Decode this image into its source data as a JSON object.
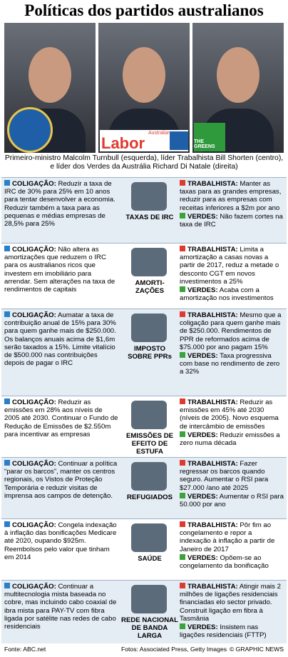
{
  "title": "Políticas dos partidos australianos",
  "logos": {
    "labor_small": "Australian",
    "labor": "Labor",
    "greens": "THE GREENS"
  },
  "caption": "Primeiro-ministro Malcolm Turnbull (esquerda), líder Trabalhista Bill Shorten (centro), e líder dos Verdes da Austrália Richard Di Natale (direita)",
  "rows": [
    {
      "coalition": {
        "label": "COLIGAÇÃO:",
        "text": "Reduzir a taxa de IRC de 30% para 25% em 10 anos para tentar desenvolver a economia. Reduzir também a taxa para as pequenas e médias empresas de 28,5% para 25%"
      },
      "topic": "TAXAS DE IRC",
      "labor": {
        "label": "TRABALHISTA:",
        "text": "Manter as taxas para as grandes empresas, reduzir para as empresas com receitas inferiores a $2m por ano"
      },
      "greens": {
        "label": "VERDES:",
        "text": "Não fazem cortes na taxa de IRC"
      }
    },
    {
      "coalition": {
        "label": "COLIGAÇÃO:",
        "text": "Não altera as amortizações que reduzem o IRC para os australianos ricos que investem em imobiliário para arrendar. Sem alterações na taxa de rendimentos de capitais"
      },
      "topic": "AMORTI-ZAÇÕES",
      "labor": {
        "label": "TRABALHISTA:",
        "text": "Limita a amortização a casas novas a partir de 2017, reduz a metade o desconto CGT em novos investimentos a 25%"
      },
      "greens": {
        "label": "VERDES:",
        "text": "Acaba com a amortização nos investimentos"
      }
    },
    {
      "coalition": {
        "label": "COLIGAÇÃO:",
        "text": "Aumatar a taxa de contribuição anual de 15% para 30% para quem ganhe mais de $250.000. Os balanços anuais acima de $1,6m serão taxados a 15%. Limite vitalício de $500.000 nas contribuições depois de pagar o IRC"
      },
      "topic": "IMPOSTO SOBRE PPRs",
      "labor": {
        "label": "TRABALHISTA:",
        "text": "Mesmo que a coligação para quem ganhe mais de $250.000. Rendimentos de PPR de reformados acima de $75.000 por ano pagam 15%"
      },
      "greens": {
        "label": "VERDES:",
        "text": "Taxa progressiva com base no rendimento de zero a 32%"
      }
    },
    {
      "coalition": {
        "label": "COLIGAÇÃO:",
        "text": "Reduzir as emissões em 28% aos níveis de 2005 até 2030. Continuar o Fundo de Redução de Emissões de $2.550m para incentivar as empresas"
      },
      "topic": "EMISSÕES DE EFEITO DE ESTUFA",
      "labor": {
        "label": "TRABALHISTA:",
        "text": "Reduzir as emissões em 45% até 2030 (níveis de 2005). Novo esquema de intercâmbio de emissões"
      },
      "greens": {
        "label": "VERDES:",
        "text": "Reduzir emissões a zero numa década"
      }
    },
    {
      "coalition": {
        "label": "COLIGAÇÃO:",
        "text": "Continuar a política “parar os barcos”, manter os centros regionais, os Vistos de Proteção Temporária e reduzir visitas de imprensa aos campos de detenção."
      },
      "topic": "REFUGIADOS",
      "labor": {
        "label": "TRABALHISTA:",
        "text": "Fazer regressar os barcos quando seguro. Aumentar o RSI para $27.000 /ano até 2025"
      },
      "greens": {
        "label": "VERDES:",
        "text": "Aumentar o RSI para 50.000 por ano"
      }
    },
    {
      "coalition": {
        "label": "COLIGAÇÃO:",
        "text": "Congela indexação à inflação das bonificações Medicare até 2020, oupando $925m. Reembolsos pelo valor que tinham em 2014"
      },
      "topic": "SAÚDE",
      "labor": {
        "label": "TRABALHISTA:",
        "text": "Pôr fim ao congelamento e repor a indexação à inflação a partir de Janeiro de 2017"
      },
      "greens": {
        "label": "VERDES:",
        "text": "Opõem-se ao congelamento da bonificação"
      }
    },
    {
      "coalition": {
        "label": "COLIGAÇÃO:",
        "text": "Continuar a multitecnologia mista baseada no cobre, mas incluindo cabo coaxial de ibra mista para PAY-TV com fibra ligada por satélite nas redes de cabo residenciais"
      },
      "topic": "REDE NACIONAL DE BANDA LARGA",
      "labor": {
        "label": "TRABALHISTA:",
        "text": "Atingir mais 2 milhões de ligações residenciais financiadas elo sector privado. Construit ligação em fibra à Tasmânia"
      },
      "greens": {
        "label": "VERDES:",
        "text": "Insistem nas ligações residenciais (FTTP)"
      }
    }
  ],
  "footer": {
    "source": "Fonte: ABC.net",
    "photos": "Fotos: Associated Press, Getty Images",
    "credit": "© GRAPHIC NEWS"
  }
}
